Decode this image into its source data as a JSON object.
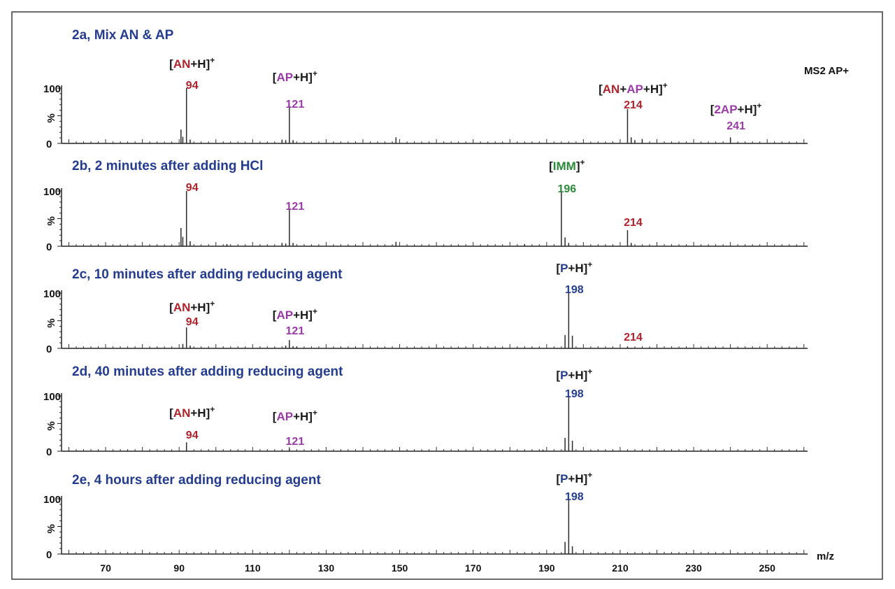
{
  "chart_data": {
    "type": "stacked-spectra",
    "figure_label": "MS2 AP+",
    "xlabel": "m/z",
    "xlim": [
      58,
      261
    ],
    "x_ticks": [
      70,
      90,
      110,
      130,
      150,
      170,
      190,
      210,
      230,
      250
    ],
    "colors": {
      "AN": "#b2222b",
      "AP": "#9a3aa8",
      "IMM": "#2a8a37",
      "P": "#243c8f",
      "bracket": "#1a1a1a",
      "title": "#243c8f"
    },
    "panels": [
      {
        "title": "2a, Mix AN & AP",
        "ylabel": "%",
        "ytick": "100",
        "ylim": [
          0,
          100
        ],
        "peaks": [
          [
            90.5,
            25
          ],
          [
            91,
            12
          ],
          [
            92,
            100
          ],
          [
            93,
            7
          ],
          [
            118,
            7
          ],
          [
            119,
            6
          ],
          [
            120,
            68
          ],
          [
            121,
            6
          ],
          [
            149,
            11
          ],
          [
            212,
            62
          ],
          [
            213,
            11
          ],
          [
            214,
            6
          ],
          [
            216,
            8
          ],
          [
            240,
            11
          ]
        ],
        "labels": [
          {
            "value": "94",
            "mz": 92,
            "color": "AN",
            "species": [
              {
                "t": "["
              },
              {
                "t": "AN",
                "c": "AN"
              },
              {
                "t": "+H]"
              }
            ],
            "charge": "+"
          },
          {
            "value": "121",
            "mz": 120,
            "color": "AP",
            "species": [
              {
                "t": "["
              },
              {
                "t": "AP",
                "c": "AP"
              },
              {
                "t": "+H]"
              }
            ],
            "charge": "+"
          },
          {
            "value": "214",
            "mz": 212,
            "color": "AN",
            "species": [
              {
                "t": "["
              },
              {
                "t": "AN",
                "c": "AN"
              },
              {
                "t": "+"
              },
              {
                "t": "AP",
                "c": "AP"
              },
              {
                "t": "+H]"
              }
            ],
            "charge": "+"
          },
          {
            "value": "241",
            "mz": 240,
            "color": "AP",
            "species": [
              {
                "t": "["
              },
              {
                "t": "2AP",
                "c": "AP"
              },
              {
                "t": "+H]"
              }
            ],
            "charge": "+"
          }
        ]
      },
      {
        "title": "2b, 2 minutes after adding HCl",
        "ylabel": "%",
        "ytick": "100",
        "ylim": [
          0,
          100
        ],
        "peaks": [
          [
            90.5,
            33
          ],
          [
            91,
            17
          ],
          [
            92,
            100
          ],
          [
            93,
            9
          ],
          [
            103,
            4
          ],
          [
            118,
            6
          ],
          [
            119,
            5
          ],
          [
            120,
            67
          ],
          [
            121,
            6
          ],
          [
            149,
            8
          ],
          [
            184,
            4
          ],
          [
            194,
            100
          ],
          [
            195,
            16
          ],
          [
            196,
            6
          ],
          [
            212,
            29
          ],
          [
            213,
            6
          ]
        ],
        "labels": [
          {
            "value": "94",
            "mz": 92,
            "color": "AN"
          },
          {
            "value": "121",
            "mz": 120,
            "color": "AP"
          },
          {
            "value": "196",
            "mz": 194,
            "color": "IMM",
            "species": [
              {
                "t": "["
              },
              {
                "t": "IMM",
                "c": "IMM"
              },
              {
                "t": "]"
              }
            ],
            "charge": "+"
          },
          {
            "value": "214",
            "mz": 212,
            "color": "AN"
          }
        ]
      },
      {
        "title": "2c, 10 minutes after adding reducing agent",
        "ylabel": "%",
        "ytick": "100",
        "ylim": [
          0,
          100
        ],
        "peaks": [
          [
            91,
            8
          ],
          [
            92,
            38
          ],
          [
            93,
            5
          ],
          [
            119,
            5
          ],
          [
            120,
            15
          ],
          [
            121,
            4
          ],
          [
            122,
            3
          ],
          [
            195,
            24
          ],
          [
            196,
            100
          ],
          [
            197,
            23
          ],
          [
            212,
            3
          ]
        ],
        "labels": [
          {
            "value": "94",
            "mz": 92,
            "color": "AN",
            "species": [
              {
                "t": "["
              },
              {
                "t": "AN",
                "c": "AN"
              },
              {
                "t": "+H]"
              }
            ],
            "charge": "+"
          },
          {
            "value": "121",
            "mz": 120,
            "color": "AP",
            "species": [
              {
                "t": "["
              },
              {
                "t": "AP",
                "c": "AP"
              },
              {
                "t": "+H]"
              }
            ],
            "charge": "+"
          },
          {
            "value": "198",
            "mz": 196,
            "color": "P",
            "species": [
              {
                "t": "["
              },
              {
                "t": "P",
                "c": "P"
              },
              {
                "t": "+H]"
              }
            ],
            "charge": "+"
          },
          {
            "value": "214",
            "mz": 212,
            "color": "AN"
          }
        ]
      },
      {
        "title": "2d, 40 minutes after adding reducing agent",
        "ylabel": "%",
        "ytick": "100",
        "ylim": [
          0,
          100
        ],
        "peaks": [
          [
            92,
            16
          ],
          [
            120,
            5
          ],
          [
            189,
            3
          ],
          [
            195,
            24
          ],
          [
            196,
            100
          ],
          [
            197,
            19
          ]
        ],
        "labels": [
          {
            "value": "94",
            "mz": 92,
            "color": "AN",
            "species": [
              {
                "t": "["
              },
              {
                "t": "AN",
                "c": "AN"
              },
              {
                "t": "+H]"
              }
            ],
            "charge": "+"
          },
          {
            "value": "121",
            "mz": 120,
            "color": "AP",
            "species": [
              {
                "t": "["
              },
              {
                "t": "AP",
                "c": "AP"
              },
              {
                "t": "+H]"
              }
            ],
            "charge": "+"
          },
          {
            "value": "198",
            "mz": 196,
            "color": "P",
            "species": [
              {
                "t": "["
              },
              {
                "t": "P",
                "c": "P"
              },
              {
                "t": "+H]"
              }
            ],
            "charge": "+"
          }
        ]
      },
      {
        "title": "2e, 4 hours after adding reducing agent",
        "ylabel": "%",
        "ytick": "100",
        "ylim": [
          0,
          100
        ],
        "peaks": [
          [
            195,
            22
          ],
          [
            196,
            100
          ],
          [
            197,
            14
          ]
        ],
        "labels": [
          {
            "value": "198",
            "mz": 196,
            "color": "P",
            "species": [
              {
                "t": "["
              },
              {
                "t": "P",
                "c": "P"
              },
              {
                "t": "+H]"
              }
            ],
            "charge": "+"
          }
        ]
      }
    ]
  }
}
